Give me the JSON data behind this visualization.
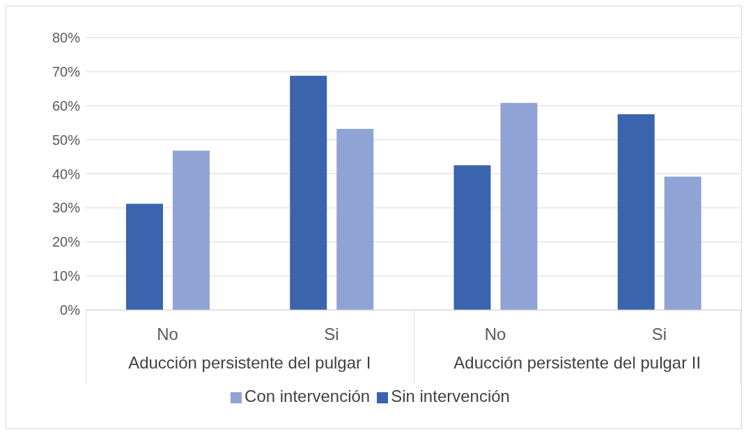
{
  "chart_data": {
    "type": "bar",
    "categories": [
      "No",
      "Si",
      "No",
      "Si"
    ],
    "series": [
      {
        "name": "Sin intervención",
        "color": "#3a64ad",
        "values": [
          31.2,
          68.8,
          42.5,
          57.5
        ]
      },
      {
        "name": "Con intervención",
        "color": "#8fa3d4",
        "values": [
          46.8,
          53.2,
          60.8,
          39.2
        ]
      }
    ],
    "annotations": [
      "Aducción persistente del pulgar I",
      "Aducción persistente del pulgar II"
    ],
    "ylim": [
      0,
      80
    ],
    "yticks": [
      {
        "value": 0,
        "label": "0%"
      },
      {
        "value": 10,
        "label": "10%"
      },
      {
        "value": 20,
        "label": "20%"
      },
      {
        "value": 30,
        "label": "30%"
      },
      {
        "value": 40,
        "label": "40%"
      },
      {
        "value": 50,
        "label": "50%"
      },
      {
        "value": 60,
        "label": "60%"
      },
      {
        "value": 70,
        "label": "70%"
      },
      {
        "value": 80,
        "label": "80%"
      }
    ],
    "grid": "y",
    "legend": "bottom"
  }
}
